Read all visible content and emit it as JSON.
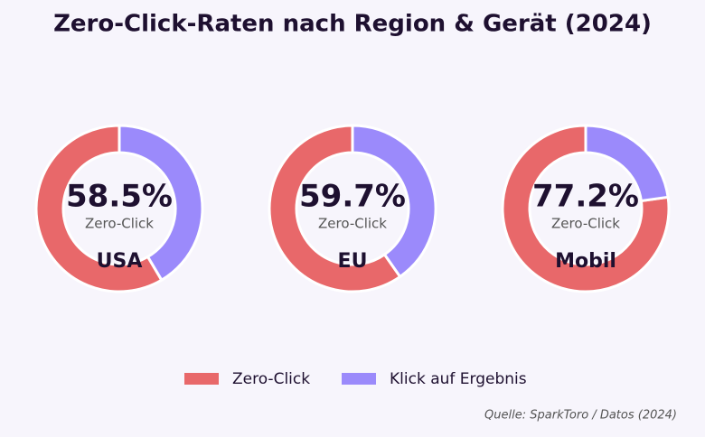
{
  "title": "Zero-Click-Raten nach Region & Gerät (2024)",
  "source": "Quelle: SparkToro / Datos (2024)",
  "chart_data": [
    {
      "type": "donut",
      "title": "USA",
      "categories": [
        "Zero-Click",
        "Klick auf Ergebnis"
      ],
      "values": [
        58.5,
        41.5
      ],
      "value_labels": [
        "58.5%",
        null
      ],
      "colors": [
        "#e8686a",
        "#9b8afb"
      ]
    },
    {
      "type": "donut",
      "title": "EU",
      "categories": [
        "Zero-Click",
        "Klick auf Ergebnis"
      ],
      "values": [
        59.7,
        40.3
      ],
      "value_labels": [
        "59.7%",
        null
      ],
      "colors": [
        "#e8686a",
        "#9b8afb"
      ]
    },
    {
      "type": "donut",
      "title": "Mobil",
      "categories": [
        "Zero-Click",
        "Klick auf Ergebnis"
      ],
      "values": [
        77.2,
        22.8
      ],
      "value_labels": [
        "77.2%",
        null
      ],
      "colors": [
        "#e8686a",
        "#9b8afb"
      ]
    }
  ]
}
